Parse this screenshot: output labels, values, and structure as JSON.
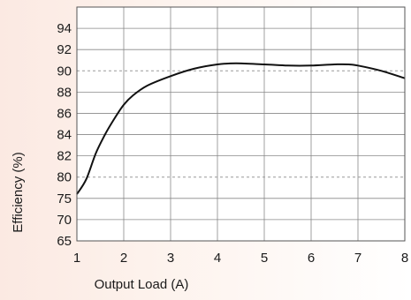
{
  "chart_data": {
    "type": "line",
    "title": "",
    "xlabel": "Output Load (A)",
    "ylabel": "Efficiency (%)",
    "xlim": [
      1,
      8
    ],
    "x_ticks": [
      "1",
      "2",
      "3",
      "4",
      "5",
      "6",
      "7",
      "8"
    ],
    "y_ticks": [
      "65",
      "70",
      "75",
      "80",
      "82",
      "84",
      "86",
      "88",
      "90",
      "92",
      "94"
    ],
    "y_scale": "piecewise (65-80 step 5, 80-94 step 2)",
    "grid": true,
    "dashed_reference_lines": [
      80,
      90
    ],
    "series": [
      {
        "x": [
          1.0,
          1.2,
          1.4,
          1.6,
          1.8,
          2.0,
          2.2,
          2.5,
          3.0,
          3.5,
          4.0,
          4.4,
          5.0,
          5.5,
          6.0,
          6.5,
          6.8,
          7.0,
          7.5,
          8.0
        ],
        "values": [
          76.0,
          79.5,
          82.2,
          84.0,
          85.5,
          86.8,
          87.7,
          88.6,
          89.5,
          90.2,
          90.6,
          90.7,
          90.6,
          90.5,
          90.5,
          90.6,
          90.6,
          90.5,
          90.0,
          89.3
        ]
      }
    ],
    "colors": {
      "line": "#111111",
      "grid": "#888888",
      "reference": "#999999"
    }
  }
}
